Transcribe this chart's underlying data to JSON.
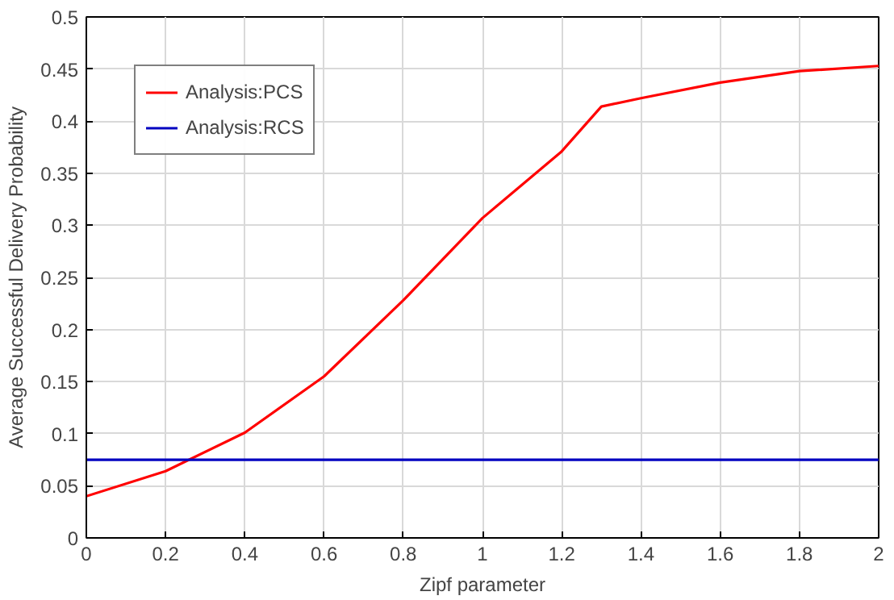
{
  "chart_data": {
    "type": "line",
    "xlabel": "Zipf parameter",
    "ylabel": "Average Successful Delivery Probability",
    "x": [
      0,
      0.2,
      0.4,
      0.6,
      0.8,
      1.0,
      1.2,
      1.3,
      1.4,
      1.6,
      1.8,
      2.0
    ],
    "series": [
      {
        "name": "Analysis:PCS",
        "color": "#ff0000",
        "values": [
          0.04,
          0.064,
          0.101,
          0.155,
          0.228,
          0.307,
          0.371,
          0.414,
          0.422,
          0.437,
          0.448,
          0.453
        ]
      },
      {
        "name": "Analysis:RCS",
        "color": "#0000c0",
        "values": [
          0.075,
          0.075,
          0.075,
          0.075,
          0.075,
          0.075,
          0.075,
          0.075,
          0.075,
          0.075,
          0.075,
          0.075
        ]
      }
    ],
    "xlim": [
      0,
      2
    ],
    "ylim": [
      0,
      0.5
    ],
    "xticks": [
      0,
      0.2,
      0.4,
      0.6,
      0.8,
      1,
      1.2,
      1.4,
      1.6,
      1.8,
      2
    ],
    "yticks": [
      0,
      0.05,
      0.1,
      0.15,
      0.2,
      0.25,
      0.3,
      0.35,
      0.4,
      0.45,
      0.5
    ],
    "grid": true,
    "legend": "top left",
    "line_style": "solid",
    "marker": "none"
  }
}
